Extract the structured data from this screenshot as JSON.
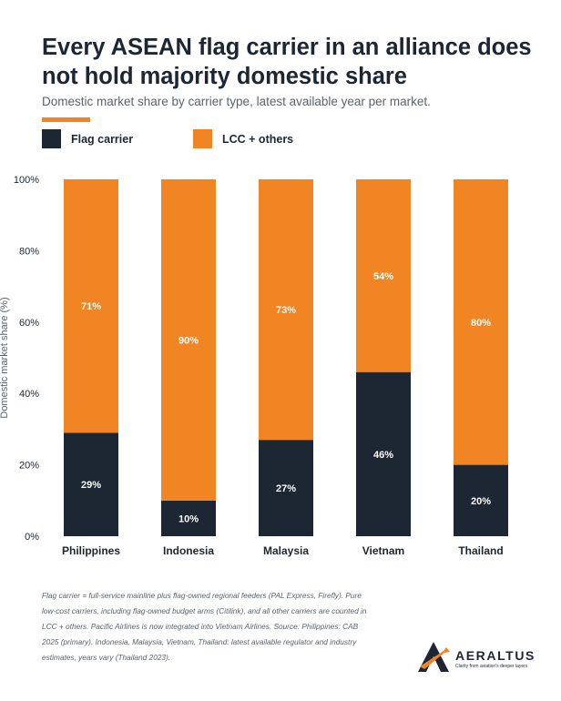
{
  "title": "Every ASEAN flag carrier in an alliance does not hold majority domestic share",
  "subtitle": "Domestic market share by carrier type, latest available year per market.",
  "colors": {
    "flag": "#1c2733",
    "lcc": "#f18423",
    "accent": "#f18423"
  },
  "footnote": "Flag carrier = full-service mainline plus flag-owned regional feeders (PAL Express, Firefly). Pure low-cost carriers, including flag-owned budget arms (Citilink), and all other carriers are counted in LCC + others. Pacific Airlines is now integrated into Vietnam Airlines. Source: Philippines: CAB 2025 (primary). Indonesia, Malaysia, Vietnam, Thailand: latest available regulator and industry estimates, years vary (Thailand 2023).",
  "logo": {
    "name": "AERALTUS",
    "tagline": "Clarity from aviation's deeper layers"
  },
  "chart_data": {
    "type": "bar",
    "stacked": true,
    "categories": [
      "Philippines",
      "Indonesia",
      "Malaysia",
      "Vietnam",
      "Thailand"
    ],
    "series": [
      {
        "name": "Flag carrier",
        "values": [
          29,
          10,
          27,
          46,
          20
        ],
        "labels": [
          "29%",
          "10%",
          "27%",
          "46%",
          "20%"
        ]
      },
      {
        "name": "LCC + others",
        "values": [
          71,
          90,
          73,
          54,
          80
        ],
        "labels": [
          "71%",
          "90%",
          "73%",
          "54%",
          "80%"
        ]
      }
    ],
    "ylabel": "Domestic market share (%)",
    "ylim": [
      0,
      100
    ],
    "yticks": [
      0,
      20,
      40,
      60,
      80,
      100
    ],
    "ytick_labels": [
      "0%",
      "20%",
      "40%",
      "60%",
      "80%",
      "100%"
    ],
    "legend_position": "top-left",
    "grid": false
  }
}
